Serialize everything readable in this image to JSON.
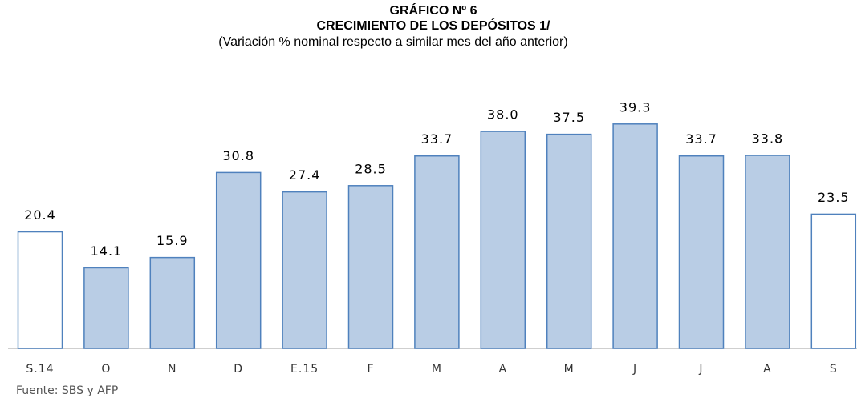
{
  "chart_data": {
    "type": "bar",
    "title": "GRÁFICO Nº 6",
    "subtitle": "CRECIMIENTO DE LOS DEPÓSITOS 1/",
    "subtitle2": "(Variación % nominal respecto a similar mes del año anterior)",
    "source": "Fuente: SBS y AFP",
    "categories": [
      "S.14",
      "O",
      "N",
      "D",
      "E.15",
      "F",
      "M",
      "A",
      "M",
      "J",
      "J",
      "A",
      "S"
    ],
    "values": [
      20.4,
      14.1,
      15.9,
      30.8,
      27.4,
      28.5,
      33.7,
      38.0,
      37.5,
      39.3,
      33.7,
      33.8,
      23.5
    ],
    "value_labels": [
      "20.4",
      "14.1",
      "15.9",
      "30.8",
      "27.4",
      "28.5",
      "33.7",
      "38.0",
      "37.5",
      "39.3",
      "33.7",
      "33.8",
      "23.5"
    ],
    "colors": [
      "#ffffff",
      "#b9cde5",
      "#b9cde5",
      "#b9cde5",
      "#b9cde5",
      "#b9cde5",
      "#b9cde5",
      "#b9cde5",
      "#b9cde5",
      "#b9cde5",
      "#b9cde5",
      "#b9cde5",
      "#ffffff"
    ],
    "edge_color": "#4f81bd"
  }
}
